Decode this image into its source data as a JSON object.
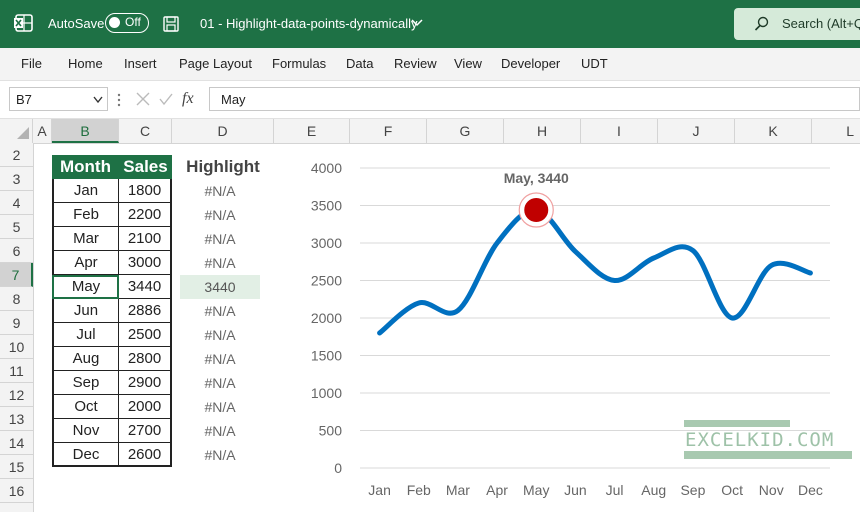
{
  "titlebar": {
    "autosave_label": "AutoSave",
    "autosave_state": "Off",
    "filename": "01 - Highlight-data-points-dynamically",
    "search_label": "Search (Alt+Q)"
  },
  "menu": [
    "File",
    "Home",
    "Insert",
    "Page Layout",
    "Formulas",
    "Data",
    "Review",
    "View",
    "Developer",
    "UDT"
  ],
  "formula_bar": {
    "name_box": "B7",
    "fx": "fx",
    "value": "May"
  },
  "columns": [
    "A",
    "B",
    "C",
    "D",
    "E",
    "F",
    "G",
    "H",
    "I",
    "J",
    "K",
    "L"
  ],
  "rows": [
    "2",
    "3",
    "4",
    "5",
    "6",
    "7",
    "8",
    "9",
    "10",
    "11",
    "12",
    "13",
    "14",
    "15",
    "16"
  ],
  "table": {
    "headers": {
      "month": "Month",
      "sales": "Sales",
      "highlight": "Highlight"
    },
    "months": [
      "Jan",
      "Feb",
      "Mar",
      "Apr",
      "May",
      "Jun",
      "Jul",
      "Aug",
      "Sep",
      "Oct",
      "Nov",
      "Dec"
    ],
    "sales": [
      "1800",
      "2200",
      "2100",
      "3000",
      "3440",
      "2886",
      "2500",
      "2800",
      "2900",
      "2000",
      "2700",
      "2600"
    ],
    "highlight": [
      "#N/A",
      "#N/A",
      "#N/A",
      "#N/A",
      "3440",
      "#N/A",
      "#N/A",
      "#N/A",
      "#N/A",
      "#N/A",
      "#N/A",
      "#N/A"
    ],
    "selected_row": 4
  },
  "chart_data": {
    "type": "line",
    "categories": [
      "Jan",
      "Feb",
      "Mar",
      "Apr",
      "May",
      "Jun",
      "Jul",
      "Aug",
      "Sep",
      "Oct",
      "Nov",
      "Dec"
    ],
    "series": [
      {
        "values": [
          1800,
          2200,
          2100,
          3000,
          3440,
          2886,
          2500,
          2800,
          2900,
          2000,
          2700,
          2600
        ],
        "color": "#0070c0"
      },
      {
        "values": [
          null,
          null,
          null,
          null,
          3440,
          null,
          null,
          null,
          null,
          null,
          null,
          null
        ],
        "color": "#c00000"
      }
    ],
    "ylim": [
      0,
      4000
    ],
    "yticks": [
      "0",
      "500",
      "1000",
      "1500",
      "2000",
      "2500",
      "3000",
      "3500",
      "4000"
    ],
    "annotation": "May, 3440",
    "grid": true
  },
  "watermark": "EXCELKID.COM"
}
